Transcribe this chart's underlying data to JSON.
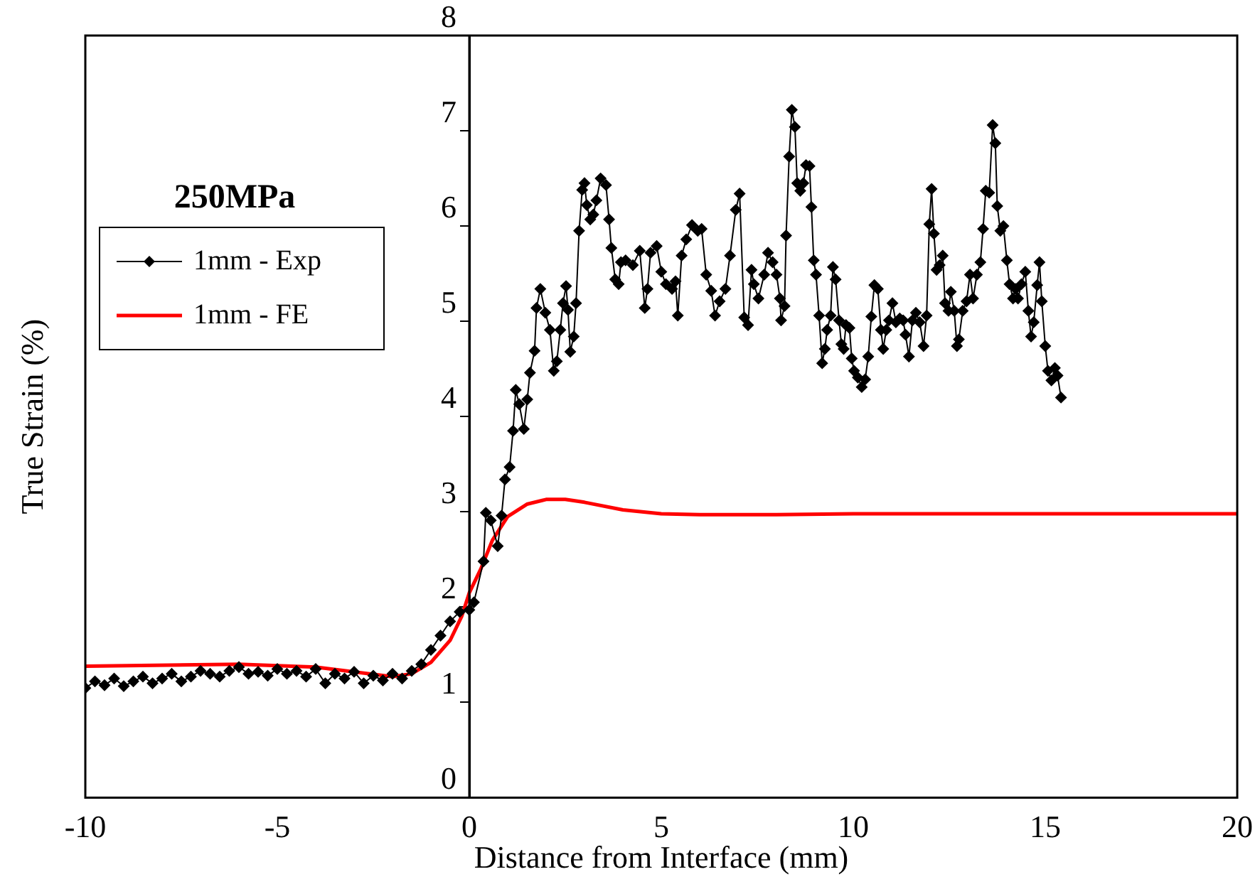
{
  "chart_data": {
    "type": "line",
    "title": "250MPa",
    "xlabel": "Distance from Interface (mm)",
    "ylabel": "True Strain (%)",
    "xlim": [
      -10,
      20
    ],
    "xticks": [
      -10,
      -5,
      0,
      5,
      10,
      15,
      20
    ],
    "ylim": [
      0,
      8
    ],
    "yticks": [
      0,
      1,
      2,
      3,
      4,
      5,
      6,
      7,
      8
    ],
    "grid": false,
    "legend": "top left",
    "series": [
      {
        "name": "1mm - Exp",
        "color": "#000000",
        "marker": "diamond",
        "line_style": "solid",
        "x": [
          -10,
          -9.75,
          -9.5,
          -9.25,
          -9,
          -8.75,
          -8.5,
          -8.25,
          -8,
          -7.75,
          -7.5,
          -7.25,
          -7,
          -6.75,
          -6.5,
          -6.25,
          -6,
          -5.75,
          -5.5,
          -5.25,
          -5,
          -4.75,
          -4.5,
          -4.25,
          -4,
          -3.75,
          -3.5,
          -3.25,
          -3,
          -2.75,
          -2.5,
          -2.25,
          -2,
          -1.75,
          -1.5,
          -1.25,
          -1,
          -0.75,
          -0.5,
          -0.25,
          0,
          0.12,
          0.37,
          0.43,
          0.56,
          0.74,
          0.84,
          0.93,
          1.05,
          1.14,
          1.21,
          1.3,
          1.42,
          1.51,
          1.58,
          1.7,
          1.75,
          1.85,
          1.98,
          2.1,
          2.2,
          2.28,
          2.37,
          2.44,
          2.52,
          2.57,
          2.63,
          2.72,
          2.78,
          2.86,
          2.94,
          3,
          3.06,
          3.15,
          3.23,
          3.31,
          3.42,
          3.56,
          3.64,
          3.7,
          3.8,
          3.89,
          3.95,
          4.07,
          4.26,
          4.44,
          4.57,
          4.64,
          4.72,
          4.88,
          5,
          5.12,
          5.28,
          5.37,
          5.43,
          5.53,
          5.65,
          5.8,
          5.95,
          6.05,
          6.17,
          6.3,
          6.4,
          6.52,
          6.67,
          6.79,
          6.94,
          7.04,
          7.16,
          7.26,
          7.35,
          7.41,
          7.53,
          7.68,
          7.78,
          7.9,
          8,
          8.09,
          8.12,
          8.21,
          8.25,
          8.33,
          8.4,
          8.48,
          8.54,
          8.62,
          8.7,
          8.77,
          8.86,
          8.91,
          8.97,
          9.03,
          9.11,
          9.19,
          9.26,
          9.32,
          9.41,
          9.47,
          9.54,
          9.63,
          9.69,
          9.75,
          9.81,
          9.9,
          9.96,
          10.02,
          10.12,
          10.22,
          10.31,
          10.39,
          10.47,
          10.55,
          10.64,
          10.72,
          10.78,
          10.86,
          10.93,
          11.02,
          11.11,
          11.21,
          11.3,
          11.36,
          11.45,
          11.54,
          11.63,
          11.73,
          11.83,
          11.91,
          11.98,
          12.04,
          12.1,
          12.17,
          12.25,
          12.33,
          12.39,
          12.48,
          12.54,
          12.63,
          12.7,
          12.75,
          12.85,
          12.95,
          13.04,
          13.12,
          13.22,
          13.31,
          13.38,
          13.45,
          13.54,
          13.63,
          13.7,
          13.75,
          13.83,
          13.91,
          14,
          14.07,
          14.16,
          14.23,
          14.29,
          14.38,
          14.48,
          14.56,
          14.63,
          14.7,
          14.79,
          14.85,
          14.91,
          15,
          15.07,
          15.16,
          15.25,
          15.32,
          15.41
        ],
        "values": [
          1.15,
          1.22,
          1.18,
          1.25,
          1.17,
          1.22,
          1.27,
          1.2,
          1.25,
          1.3,
          1.22,
          1.27,
          1.33,
          1.3,
          1.27,
          1.33,
          1.37,
          1.3,
          1.32,
          1.28,
          1.35,
          1.3,
          1.33,
          1.27,
          1.35,
          1.2,
          1.3,
          1.25,
          1.32,
          1.2,
          1.28,
          1.23,
          1.3,
          1.25,
          1.33,
          1.4,
          1.55,
          1.7,
          1.85,
          1.95,
          1.97,
          2.05,
          2.48,
          2.99,
          2.91,
          2.64,
          2.96,
          3.34,
          3.47,
          3.85,
          4.28,
          4.13,
          3.87,
          4.18,
          4.46,
          4.69,
          5.14,
          5.34,
          5.09,
          4.91,
          4.48,
          4.58,
          4.91,
          5.19,
          5.37,
          5.12,
          4.68,
          4.84,
          5.19,
          5.95,
          6.38,
          6.45,
          6.22,
          6.07,
          6.12,
          6.27,
          6.5,
          6.43,
          6.07,
          5.77,
          5.44,
          5.39,
          5.62,
          5.64,
          5.59,
          5.74,
          5.14,
          5.34,
          5.72,
          5.79,
          5.52,
          5.39,
          5.34,
          5.42,
          5.06,
          5.69,
          5.86,
          6.01,
          5.95,
          5.97,
          5.49,
          5.32,
          5.06,
          5.21,
          5.34,
          5.69,
          6.17,
          6.34,
          5.04,
          4.96,
          5.54,
          5.39,
          5.24,
          5.49,
          5.72,
          5.62,
          5.49,
          5.24,
          5.01,
          5.16,
          5.9,
          6.73,
          7.22,
          7.04,
          6.45,
          6.37,
          6.45,
          6.64,
          6.63,
          6.2,
          5.64,
          5.49,
          5.06,
          4.56,
          4.71,
          4.91,
          5.06,
          5.57,
          5.44,
          5.01,
          4.76,
          4.71,
          4.96,
          4.93,
          4.61,
          4.48,
          4.41,
          4.31,
          4.39,
          4.63,
          5.05,
          5.38,
          5.34,
          4.91,
          4.71,
          4.91,
          5.01,
          5.19,
          4.99,
          5.03,
          5.01,
          4.86,
          4.63,
          5.01,
          5.09,
          4.99,
          4.74,
          5.06,
          6.02,
          6.39,
          5.92,
          5.54,
          5.59,
          5.69,
          5.19,
          5.11,
          5.31,
          5.11,
          4.74,
          4.81,
          5.11,
          5.21,
          5.49,
          5.24,
          5.49,
          5.62,
          5.97,
          6.37,
          6.35,
          7.06,
          6.87,
          6.21,
          5.95,
          6,
          5.64,
          5.39,
          5.24,
          5.34,
          5.24,
          5.39,
          5.52,
          5.11,
          4.84,
          4.99,
          5.38,
          5.62,
          5.21,
          4.74,
          4.48,
          4.38,
          4.51,
          4.43,
          4.2
        ]
      },
      {
        "name": "1mm - FE",
        "color": "#ff0000",
        "marker": "none",
        "line_style": "solid",
        "x": [
          -10,
          -6,
          -4,
          -3,
          -2,
          -1.5,
          -1,
          -0.5,
          -0.2,
          0,
          0.3,
          0.6,
          1,
          1.5,
          2,
          2.5,
          3,
          4,
          5,
          6,
          8,
          10,
          15,
          20
        ],
        "values": [
          1.38,
          1.4,
          1.37,
          1.32,
          1.27,
          1.3,
          1.42,
          1.65,
          1.9,
          2.15,
          2.4,
          2.7,
          2.95,
          3.08,
          3.13,
          3.13,
          3.1,
          3.02,
          2.98,
          2.97,
          2.97,
          2.98,
          2.98,
          2.98
        ]
      }
    ]
  }
}
